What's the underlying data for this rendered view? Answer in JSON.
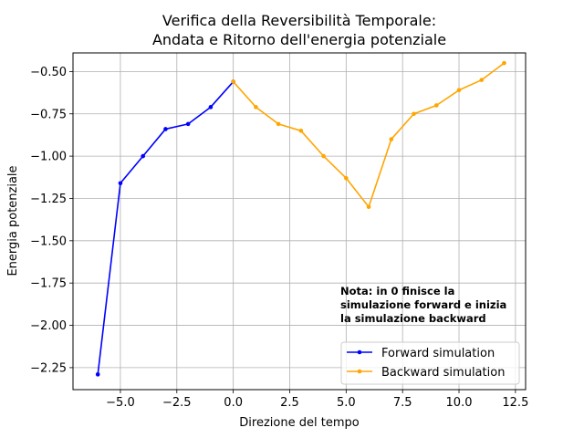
{
  "chart_data": {
    "type": "line",
    "title_lines": [
      "Verifica della Reversibilità Temporale:",
      "Andata e Ritorno dell'energia potenziale"
    ],
    "xlabel": "Direzione del tempo",
    "ylabel": "Energia potenziale",
    "xlim": [
      -7.1,
      12.95
    ],
    "ylim": [
      -2.38,
      -0.39
    ],
    "xticks": [
      -5.0,
      -2.5,
      0.0,
      2.5,
      5.0,
      7.5,
      10.0,
      12.5
    ],
    "xtick_labels": [
      "−5.0",
      "−2.5",
      "0.0",
      "2.5",
      "5.0",
      "7.5",
      "10.0",
      "12.5"
    ],
    "yticks": [
      -2.25,
      -2.0,
      -1.75,
      -1.5,
      -1.25,
      -1.0,
      -0.75,
      -0.5
    ],
    "ytick_labels": [
      "−2.25",
      "−2.00",
      "−1.75",
      "−1.50",
      "−1.25",
      "−1.00",
      "−0.75",
      "−0.50"
    ],
    "grid": true,
    "legend_position": "lower-right",
    "series": [
      {
        "name": "Forward simulation",
        "color": "#0000ff",
        "x": [
          -6,
          -5,
          -4,
          -3,
          -2,
          -1,
          0
        ],
        "y": [
          -2.29,
          -1.16,
          -1.0,
          -0.84,
          -0.81,
          -0.71,
          -0.56
        ]
      },
      {
        "name": "Backward simulation",
        "color": "#ffa500",
        "x": [
          0,
          1,
          2,
          3,
          4,
          5,
          6,
          7,
          8,
          9,
          10,
          11,
          12
        ],
        "y": [
          -0.56,
          -0.71,
          -0.81,
          -0.85,
          -1.0,
          -1.13,
          -1.3,
          -0.9,
          -0.75,
          -0.7,
          -0.61,
          -0.55,
          -0.45
        ]
      }
    ],
    "annotation": {
      "lines": [
        "Nota: in 0 finisce la",
        "simulazione forward e inizia",
        "la simulazione backward"
      ]
    }
  }
}
